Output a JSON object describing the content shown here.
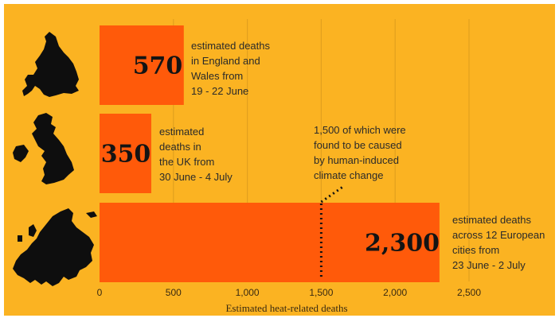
{
  "colors": {
    "background": "#FBB322",
    "frame": "#FFFFFF",
    "bar": "#FF5A0A",
    "gridline": "#E2A01E",
    "text": "#2A2A2A",
    "silhouette": "#0E0E0E",
    "annotation_line": "#111111"
  },
  "chart_data": {
    "type": "bar",
    "orientation": "horizontal",
    "xlabel": "Estimated heat-related deaths",
    "ylabel": "",
    "xlim": [
      0,
      2500
    ],
    "xticks": [
      0,
      500,
      1000,
      1500,
      2000,
      2500
    ],
    "xtick_labels": [
      "0",
      "500",
      "1,000",
      "1,500",
      "2,000",
      "2,500"
    ],
    "grid": true,
    "bars": [
      {
        "region_icon": "england-wales-map-icon",
        "value": 570,
        "value_label": "570",
        "note_lines": [
          "estimated deaths",
          "in England and",
          "Wales from",
          "19 - 22 June"
        ]
      },
      {
        "region_icon": "uk-map-icon",
        "value": 350,
        "value_label": "350",
        "note_lines": [
          "estimated",
          "deaths in",
          "the UK from",
          "30 June - 4 July"
        ]
      },
      {
        "region_icon": "europe-map-icon",
        "value": 2300,
        "value_label": "2,300",
        "note_lines": [
          "estimated deaths",
          "across 12 European",
          "cities from",
          "23 June - 2 July"
        ]
      }
    ],
    "annotation": {
      "x_value": 1500,
      "lines": [
        "1,500 of which were",
        "found to be caused",
        "by human-induced",
        "climate change"
      ]
    }
  }
}
